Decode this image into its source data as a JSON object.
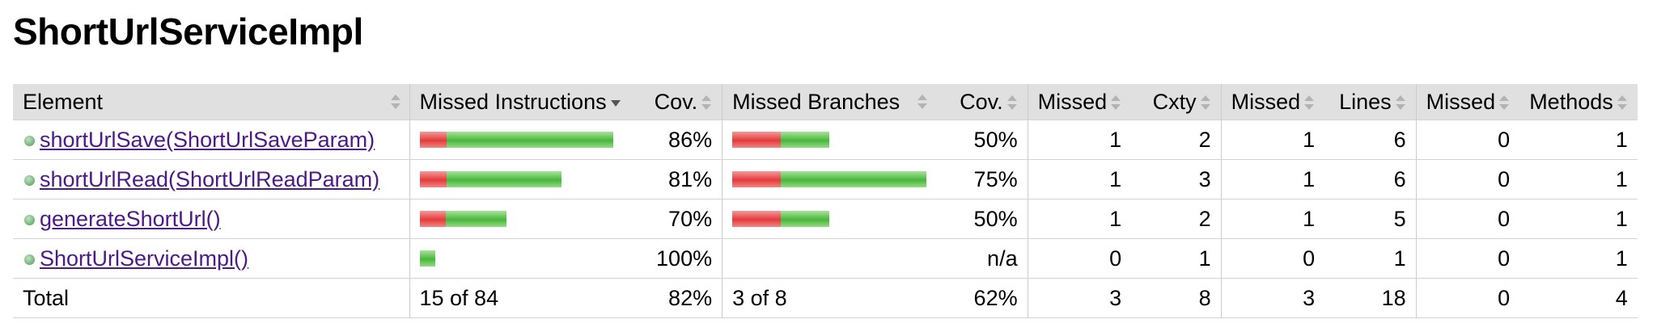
{
  "page_title": "ShortUrlServiceImpl",
  "headers": {
    "element": "Element",
    "missed_instructions": "Missed Instructions",
    "cov1": "Cov.",
    "missed_branches": "Missed Branches",
    "cov2": "Cov.",
    "missed_cxty": "Missed",
    "cxty": "Cxty",
    "missed_lines": "Missed",
    "lines": "Lines",
    "missed_methods": "Missed",
    "methods": "Methods"
  },
  "rows": [
    {
      "element": "shortUrlSave(ShortUrlSaveParam)",
      "instr_bar": {
        "missed_ratio": 0.14,
        "covered_ratio": 0.86,
        "scale": 1.0
      },
      "instr_cov": "86%",
      "branch_bar": {
        "missed_ratio": 0.5,
        "covered_ratio": 0.5,
        "scale": 0.5
      },
      "branch_cov": "50%",
      "missed_cxty": "1",
      "cxty": "2",
      "missed_lines": "1",
      "lines": "6",
      "missed_methods": "0",
      "methods": "1"
    },
    {
      "element": "shortUrlRead(ShortUrlReadParam)",
      "instr_bar": {
        "missed_ratio": 0.19,
        "covered_ratio": 0.81,
        "scale": 0.73
      },
      "instr_cov": "81%",
      "branch_bar": {
        "missed_ratio": 0.25,
        "covered_ratio": 0.75,
        "scale": 1.0
      },
      "branch_cov": "75%",
      "missed_cxty": "1",
      "cxty": "3",
      "missed_lines": "1",
      "lines": "6",
      "missed_methods": "0",
      "methods": "1"
    },
    {
      "element": "generateShortUrl()",
      "instr_bar": {
        "missed_ratio": 0.3,
        "covered_ratio": 0.7,
        "scale": 0.45
      },
      "instr_cov": "70%",
      "branch_bar": {
        "missed_ratio": 0.5,
        "covered_ratio": 0.5,
        "scale": 0.5
      },
      "branch_cov": "50%",
      "missed_cxty": "1",
      "cxty": "2",
      "missed_lines": "1",
      "lines": "5",
      "missed_methods": "0",
      "methods": "1"
    },
    {
      "element": "ShortUrlServiceImpl()",
      "instr_bar": {
        "missed_ratio": 0.0,
        "covered_ratio": 1.0,
        "scale": 0.08
      },
      "instr_cov": "100%",
      "branch_bar": null,
      "branch_cov": "n/a",
      "missed_cxty": "0",
      "cxty": "1",
      "missed_lines": "0",
      "lines": "1",
      "missed_methods": "0",
      "methods": "1"
    }
  ],
  "total": {
    "label": "Total",
    "instructions": "15 of 84",
    "instr_cov": "82%",
    "branches": "3 of 8",
    "branch_cov": "62%",
    "missed_cxty": "3",
    "cxty": "8",
    "missed_lines": "3",
    "lines": "18",
    "missed_methods": "0",
    "methods": "4"
  },
  "colors": {
    "missed": "#e43a3a",
    "covered": "#49b63c",
    "link": "#4b1a86",
    "header_bg": "#e0e0e0"
  }
}
